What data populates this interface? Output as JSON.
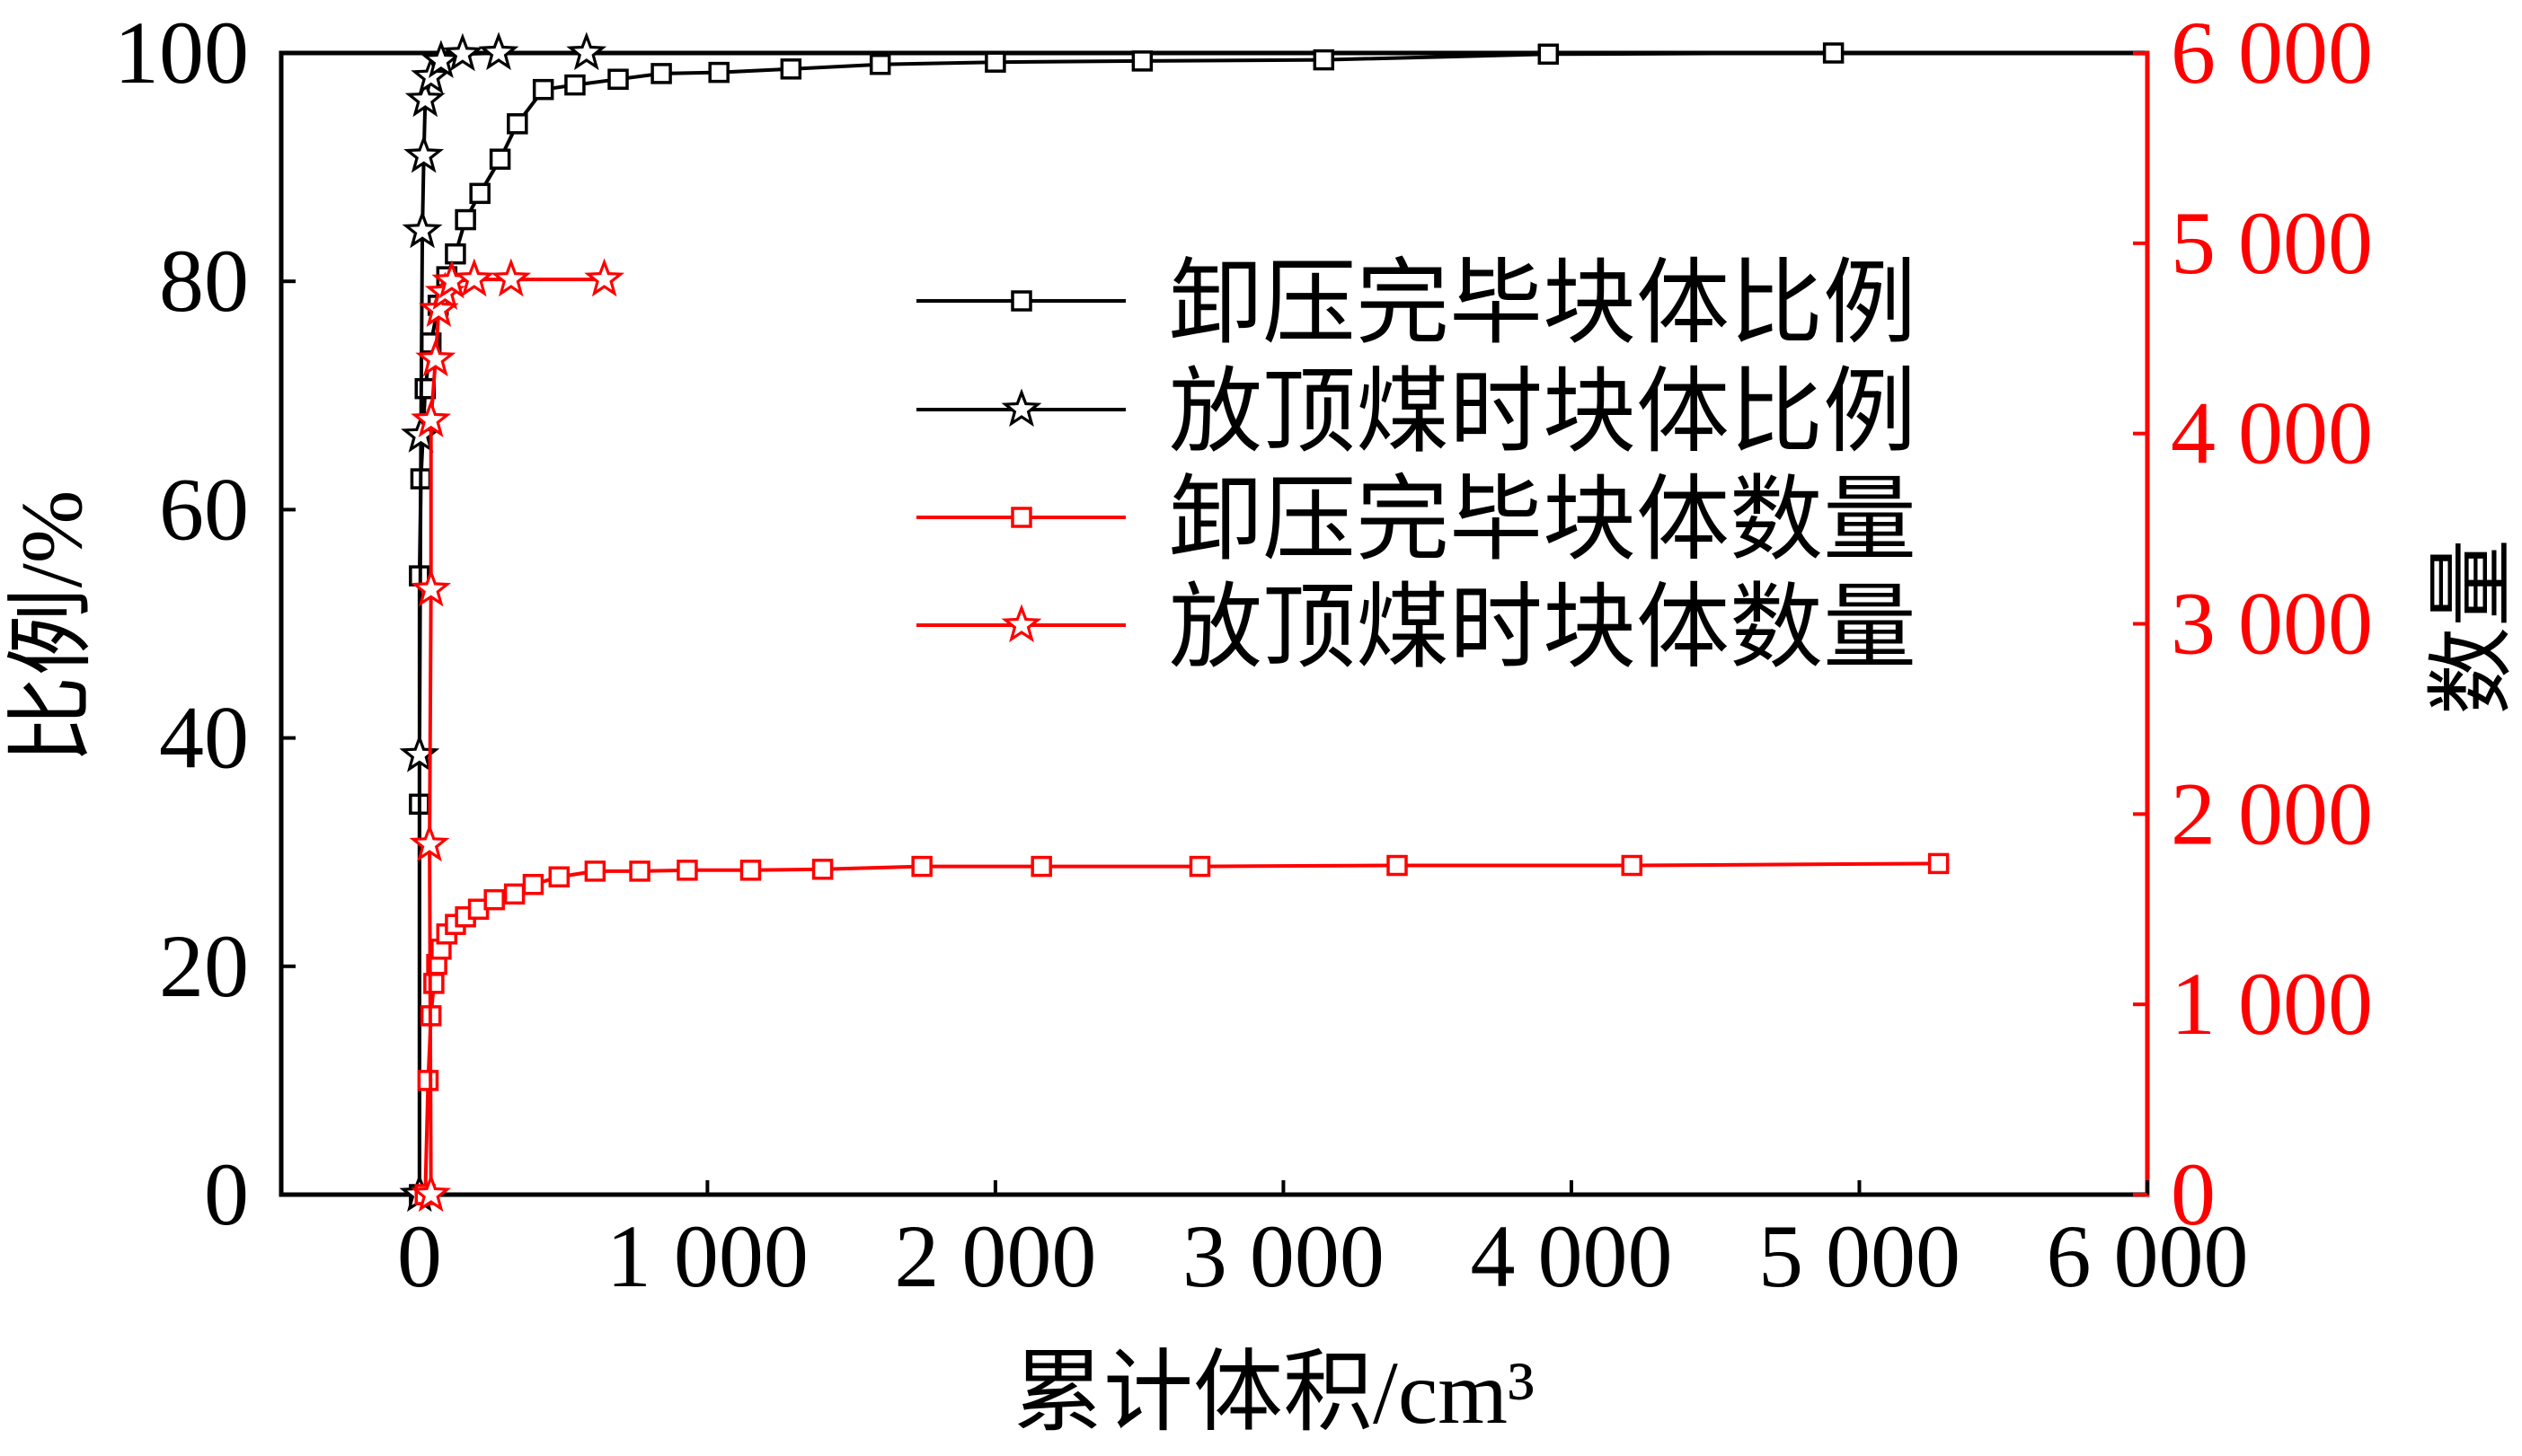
{
  "chart_data": {
    "type": "line",
    "xlabel": "累计体积/cm³",
    "ylabel": "比例/%",
    "y2label": "数量",
    "xlim": [
      -480,
      6000
    ],
    "ylim": [
      0,
      100
    ],
    "y2lim": [
      0,
      6000
    ],
    "x_ticks": [
      0,
      1000,
      2000,
      3000,
      4000,
      5000,
      6000
    ],
    "x_tick_labels": [
      "0",
      "1 000",
      "2 000",
      "3 000",
      "4 000",
      "5 000",
      "6 000"
    ],
    "y_ticks": [
      0,
      20,
      40,
      60,
      80,
      100
    ],
    "y_tick_labels": [
      "0",
      "20",
      "40",
      "60",
      "80",
      "100"
    ],
    "y2_ticks": [
      0,
      1000,
      2000,
      3000,
      4000,
      5000,
      6000
    ],
    "y2_tick_labels": [
      "0",
      "1 000",
      "2 000",
      "3 000",
      "4 000",
      "5 000",
      "6 000"
    ],
    "grid": false,
    "legend_position": "upper-center",
    "colors": {
      "primary_axis": "#000000",
      "secondary_axis": "#ff0000"
    },
    "series": [
      {
        "name": "卸压完毕块体比例",
        "axis": "left",
        "marker": "square",
        "color": "#000000",
        "x": [
          0,
          0,
          0,
          5,
          20,
          40,
          65,
          95,
          125,
          160,
          210,
          280,
          340,
          430,
          540,
          690,
          840,
          1040,
          1290,
          1600,
          2000,
          2510,
          3140,
          3920,
          4910
        ],
        "y": [
          0,
          34.2,
          54.2,
          62.7,
          70.6,
          74.6,
          77.9,
          80.4,
          82.4,
          85.4,
          87.7,
          90.7,
          93.8,
          96.8,
          97.2,
          97.7,
          98.2,
          98.3,
          98.6,
          99.0,
          99.2,
          99.3,
          99.4,
          99.9,
          100
        ]
      },
      {
        "name": "放顶煤时块体比例",
        "axis": "left",
        "marker": "star",
        "color": "#000000",
        "x": [
          0,
          0,
          5,
          10,
          15,
          20,
          40,
          75,
          150,
          275,
          580
        ],
        "y": [
          0,
          38.5,
          66.5,
          84.4,
          91.0,
          95.9,
          97.9,
          99.3,
          99.9,
          100,
          100
        ]
      },
      {
        "name": "卸压完毕块体数量",
        "axis": "right",
        "marker": "square",
        "color": "#ff0000",
        "x": [
          20,
          30,
          40,
          50,
          60,
          75,
          95,
          125,
          160,
          205,
          260,
          330,
          395,
          485,
          610,
          765,
          930,
          1150,
          1400,
          1745,
          2160,
          2710,
          3395,
          4210,
          5275
        ],
        "y": [
          0,
          600,
          940,
          1110,
          1210,
          1290,
          1370,
          1420,
          1460,
          1500,
          1550,
          1580,
          1630,
          1670,
          1700,
          1700,
          1705,
          1705,
          1710,
          1725,
          1725,
          1725,
          1730,
          1730,
          1740
        ]
      },
      {
        "name": "放顶煤时块体数量",
        "axis": "right",
        "marker": "star",
        "color": "#ff0000",
        "x": [
          40,
          35,
          40,
          40,
          56,
          67,
          89,
          112,
          190,
          318,
          642
        ],
        "y": [
          0,
          1840,
          3180,
          4070,
          4390,
          4650,
          4740,
          4800,
          4810,
          4810,
          4810
        ]
      }
    ]
  }
}
